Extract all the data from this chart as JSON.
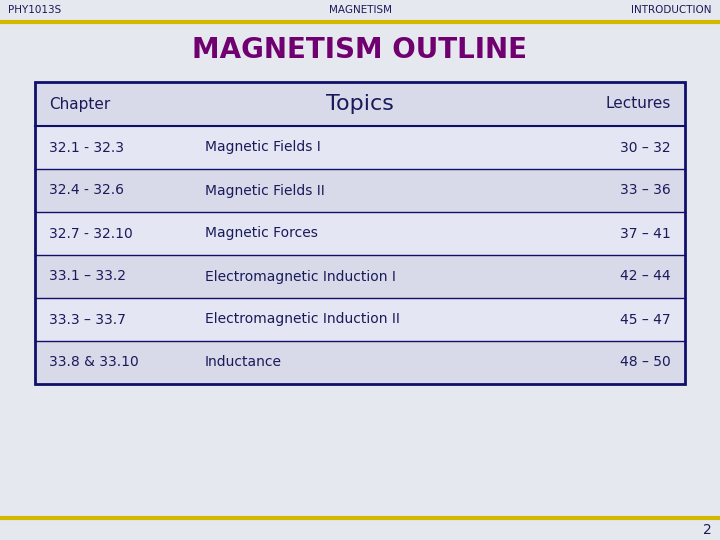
{
  "bg_color": "#e6e8f0",
  "header_left": "PHY1013S",
  "header_center": "MAGNETISM",
  "header_right": "INTRODUCTION",
  "title": "MAGNETISM OUTLINE",
  "title_color": "#700070",
  "top_line_color": "#d4b800",
  "bottom_line_color": "#d4b800",
  "page_number": "2",
  "table_border_color": "#10106a",
  "table_columns": [
    "Chapter",
    "Topics",
    "Lectures"
  ],
  "table_rows": [
    [
      "32.1 - 32.3",
      "Magnetic Fields I",
      "30 – 32"
    ],
    [
      "32.4 - 32.6",
      "Magnetic Fields II",
      "33 – 36"
    ],
    [
      "32.7 - 32.10",
      "Magnetic Forces",
      "37 – 41"
    ],
    [
      "33.1 – 33.2",
      "Electromagnetic Induction I",
      "42 – 44"
    ],
    [
      "33.3 – 33.7",
      "Electromagnetic Induction II",
      "45 – 47"
    ],
    [
      "33.8 & 33.10",
      "Inductance",
      "48 – 50"
    ]
  ],
  "header_fontsize": 7.5,
  "title_fontsize": 20,
  "table_header_fontsize": 11,
  "topics_header_fontsize": 16,
  "table_body_fontsize": 10,
  "page_num_fontsize": 10,
  "text_color": "#1a1a5a",
  "header_row_color": "#d8daea",
  "row_color_a": "#e4e6f4",
  "row_color_b": "#d8daea"
}
